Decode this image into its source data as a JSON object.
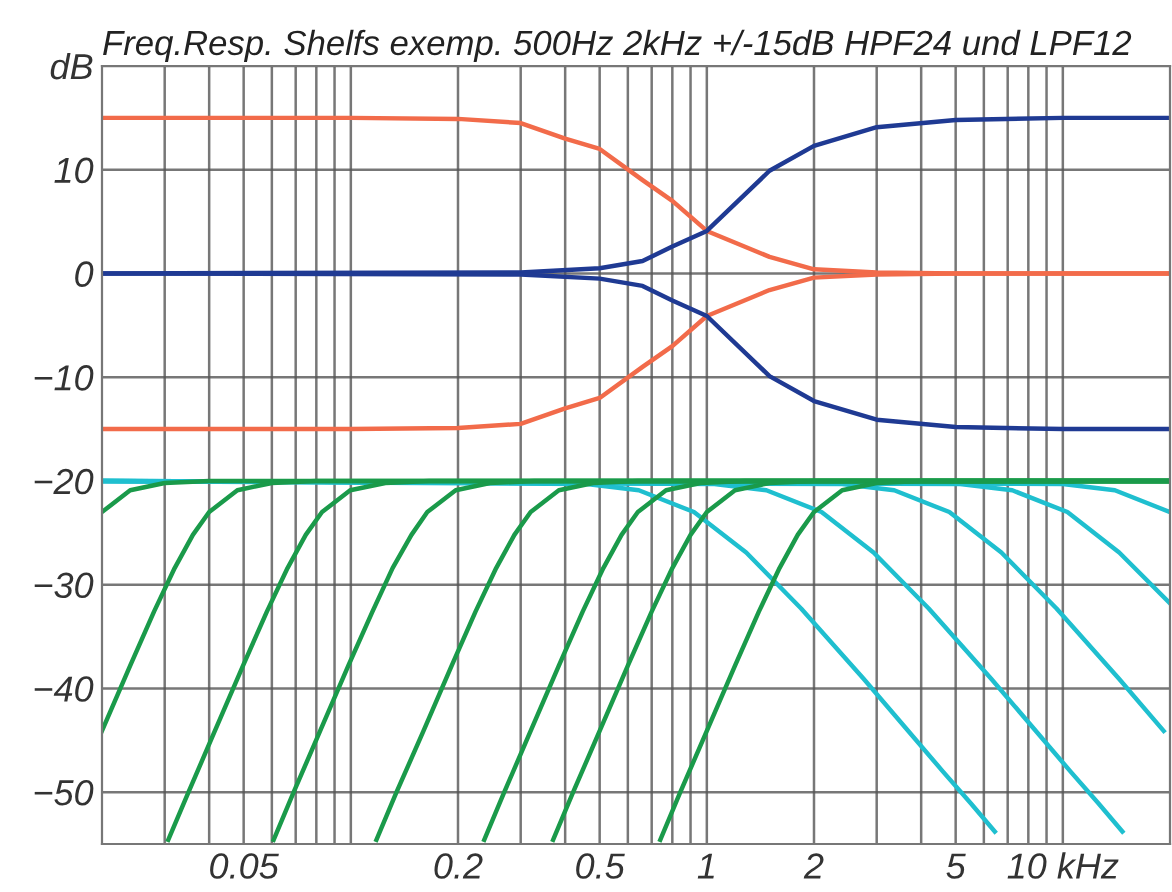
{
  "chart_data": {
    "type": "line",
    "title": "Freq.Resp. Shelfs exemp. 500Hz 2kHz +/-15dB HPF24 und LPF12",
    "log": "x",
    "grid": true,
    "xlim": [
      0.02,
      20
    ],
    "ylim": [
      -55,
      20
    ],
    "xticks": [
      {
        "value": 0.03,
        "label": null
      },
      {
        "value": 0.04,
        "label": null
      },
      0.05,
      {
        "value": 0.06,
        "label": null
      },
      {
        "value": 0.07,
        "label": null
      },
      {
        "value": 0.08,
        "label": null
      },
      {
        "value": 0.09,
        "label": null
      },
      {
        "value": 0.1,
        "label": null
      },
      0.2,
      {
        "value": 0.3,
        "label": null
      },
      {
        "value": 0.4,
        "label": null
      },
      0.5,
      {
        "value": 0.6,
        "label": null
      },
      {
        "value": 0.7,
        "label": null
      },
      {
        "value": 0.8,
        "label": null
      },
      {
        "value": 0.9,
        "label": null
      },
      1,
      2,
      {
        "value": 3,
        "label": null
      },
      {
        "value": 4,
        "label": null
      },
      5,
      {
        "value": 6,
        "label": null
      },
      {
        "value": 7,
        "label": null
      },
      {
        "value": 8,
        "label": null
      },
      {
        "value": 9,
        "label": null
      },
      {
        "value": 10,
        "label": "10 kHz"
      }
    ],
    "yticks": [
      {
        "value": -50,
        "label": "−50"
      },
      {
        "value": -40,
        "label": "−40"
      },
      {
        "value": -30,
        "label": "−30"
      },
      {
        "value": -20,
        "label": "−20"
      },
      {
        "value": -10,
        "label": "−10"
      },
      0,
      10,
      {
        "value": 20,
        "label": "dB"
      }
    ],
    "series": [
      {
        "color": "#1fbfcf",
        "x": [
          0.02,
          0.46,
          0.644,
          0.92,
          1.29,
          1.84,
          2.76,
          3.68,
          4.6,
          5.52,
          6.44
        ],
        "values": [
          -20,
          -20.3,
          -20.9,
          -23,
          -26.9,
          -32.3,
          -39.1,
          -44.1,
          -48,
          -51.1,
          -53.8
        ]
      },
      {
        "color": "#1fbfcf",
        "x": [
          0.02,
          1.05,
          1.47,
          2.1,
          2.94,
          4.2,
          6.3,
          8.4,
          10.5,
          12.6,
          14.7
        ],
        "values": [
          -20,
          -20.3,
          -20.9,
          -23,
          -26.9,
          -32.3,
          -39.1,
          -44.1,
          -48,
          -51.1,
          -53.8
        ]
      },
      {
        "color": "#1fbfcf",
        "x": [
          0.02,
          2.4,
          3.36,
          4.8,
          6.72,
          9.6,
          14.4,
          19.2
        ],
        "values": [
          -20,
          -20.3,
          -20.9,
          -23,
          -26.9,
          -32.3,
          -39.1,
          -44.1
        ]
      },
      {
        "color": "#1fbfcf",
        "x": [
          0.02,
          5.15,
          7.21,
          10.3,
          14.4,
          20
        ],
        "values": [
          -20,
          -20.3,
          -20.9,
          -23,
          -26.9,
          -31.8
        ]
      },
      {
        "color": "#1fbfcf",
        "x": [
          0.02,
          10,
          14,
          20
        ],
        "values": [
          -20,
          -20.3,
          -20.9,
          -23
        ]
      },
      {
        "color": "#1a9a4a",
        "x": [
          0.02,
          0.024,
          0.03,
          0.04,
          20
        ],
        "values": [
          -23,
          -20.9,
          -20.2,
          -20,
          -20
        ]
      },
      {
        "color": "#1a9a4a",
        "x": [
          0.02,
          0.024,
          0.028,
          0.032,
          0.036,
          0.04,
          0.048,
          0.06,
          0.08,
          20
        ],
        "values": [
          -44.1,
          -37.8,
          -32.6,
          -28.4,
          -25.2,
          -23,
          -20.9,
          -20.2,
          -20,
          -20
        ]
      },
      {
        "color": "#1a9a4a",
        "x": [
          0.0307,
          0.0349,
          0.0415,
          0.0498,
          0.0581,
          0.0664,
          0.0747,
          0.083,
          0.0996,
          0.125,
          0.166,
          20
        ],
        "values": [
          -54.6,
          -50.1,
          -44.1,
          -37.8,
          -32.6,
          -28.4,
          -25.2,
          -23,
          -20.9,
          -20.2,
          -20,
          -20
        ]
      },
      {
        "color": "#1a9a4a",
        "x": [
          0.0607,
          0.0689,
          0.082,
          0.0984,
          0.115,
          0.131,
          0.148,
          0.164,
          0.197,
          0.246,
          0.328,
          20
        ],
        "values": [
          -54.6,
          -50.1,
          -44.1,
          -37.8,
          -32.6,
          -28.4,
          -25.2,
          -23,
          -20.9,
          -20.2,
          -20,
          -20
        ]
      },
      {
        "color": "#1a9a4a",
        "x": [
          0.118,
          0.134,
          0.16,
          0.192,
          0.224,
          0.256,
          0.288,
          0.32,
          0.384,
          0.48,
          0.64,
          20
        ],
        "values": [
          -54.6,
          -50.1,
          -44.1,
          -37.8,
          -32.6,
          -28.4,
          -25.2,
          -23,
          -20.9,
          -20.2,
          -20,
          -20
        ]
      },
      {
        "color": "#1a9a4a",
        "x": [
          0.237,
          0.269,
          0.32,
          0.384,
          0.448,
          0.512,
          0.576,
          0.64,
          0.768,
          0.96,
          1.28,
          20
        ],
        "values": [
          -54.6,
          -50.1,
          -44.1,
          -37.8,
          -32.6,
          -28.4,
          -25.2,
          -23,
          -20.9,
          -20.2,
          -20,
          -20
        ]
      },
      {
        "color": "#1a9a4a",
        "x": [
          0.37,
          0.42,
          0.5,
          0.6,
          0.7,
          0.8,
          0.9,
          1,
          1.2,
          1.5,
          2,
          20
        ],
        "values": [
          -54.6,
          -50.1,
          -44.1,
          -37.8,
          -32.6,
          -28.4,
          -25.2,
          -23,
          -20.9,
          -20.2,
          -20,
          -20
        ]
      },
      {
        "color": "#1a9a4a",
        "x": [
          0.74,
          0.84,
          1,
          1.2,
          1.4,
          1.6,
          1.8,
          2,
          2.4,
          3,
          4,
          20
        ],
        "values": [
          -54.6,
          -50.1,
          -44.1,
          -37.8,
          -32.6,
          -28.4,
          -25.2,
          -23,
          -20.9,
          -20.2,
          -20,
          -20
        ]
      },
      {
        "color": "#f26b4a",
        "x": [
          0.02,
          0.1,
          0.2,
          0.3,
          0.4,
          0.5,
          0.66,
          0.8,
          1,
          1.5,
          2,
          3,
          5,
          20
        ],
        "values": [
          15,
          15,
          14.9,
          14.5,
          13,
          12,
          9,
          7,
          4.1,
          1.6,
          0.4,
          0.1,
          0,
          0
        ]
      },
      {
        "color": "#f26b4a",
        "x": [
          0.02,
          0.1,
          0.2,
          0.3,
          0.4,
          0.5,
          0.66,
          0.8,
          1,
          1.5,
          2,
          3,
          5,
          20
        ],
        "values": [
          -15,
          -15,
          -14.9,
          -14.5,
          -13,
          -12,
          -9,
          -7,
          -4.1,
          -1.6,
          -0.4,
          -0.1,
          0,
          0
        ]
      },
      {
        "color": "#1f3a93",
        "x": [
          0.02,
          0.3,
          0.5,
          0.66,
          0.8,
          1,
          1.5,
          2,
          3,
          5,
          10,
          20
        ],
        "values": [
          0,
          0.1,
          0.5,
          1.2,
          2.6,
          4.1,
          9.9,
          12.3,
          14.1,
          14.8,
          15,
          15
        ]
      },
      {
        "color": "#1f3a93",
        "x": [
          0.02,
          0.3,
          0.5,
          0.66,
          0.8,
          1,
          1.5,
          2,
          3,
          5,
          10,
          20
        ],
        "values": [
          0,
          -0.1,
          -0.5,
          -1.2,
          -2.6,
          -4.1,
          -9.9,
          -12.3,
          -14.1,
          -14.8,
          -15,
          -15
        ]
      }
    ]
  }
}
